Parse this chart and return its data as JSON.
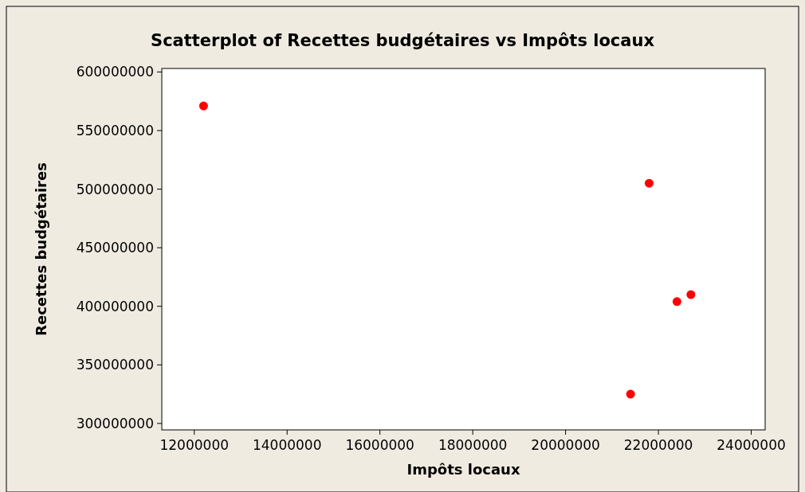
{
  "chart_data": {
    "type": "scatter",
    "title": "Scatterplot of Recettes budgétaires vs Impôts locaux",
    "xlabel": "Impôts locaux",
    "ylabel": "Recettes budgétaires",
    "x": [
      12200000,
      21800000,
      22400000,
      22700000,
      21400000
    ],
    "series": [
      {
        "color": "#ff0000",
        "values": [
          571000000,
          505000000,
          404000000,
          410000000,
          325000000
        ]
      }
    ],
    "xlim": [
      11300000,
      24300000
    ],
    "xticks": [
      12000000,
      14000000,
      16000000,
      18000000,
      20000000,
      22000000,
      24000000
    ],
    "ylim": [
      294500000,
      603000000
    ],
    "yticks": [
      300000000,
      350000000,
      400000000,
      450000000,
      500000000,
      550000000,
      600000000
    ],
    "marker": "circle",
    "grid": false
  }
}
